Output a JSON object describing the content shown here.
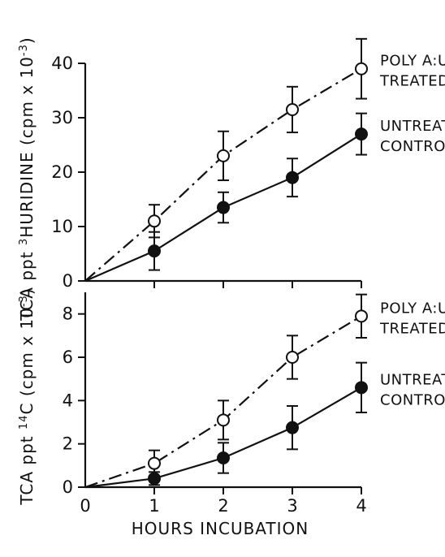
{
  "chart_data": [
    {
      "type": "line",
      "panel": "top",
      "ylabel_parts": [
        "TCA ppt ",
        "3",
        "H",
        "URIDINE (cpm x 10",
        "-3",
        ")"
      ],
      "x": [
        0,
        1,
        2,
        3,
        4
      ],
      "xlim": [
        0,
        4
      ],
      "ylim": [
        0,
        40
      ],
      "yticks": [
        0,
        10,
        20,
        30,
        40
      ],
      "series": [
        {
          "label_lines": [
            "POLY A:U",
            "TREATED"
          ],
          "marker": "open-circle",
          "line_style": "dash-dot",
          "values": [
            0,
            11,
            23,
            31.5,
            39
          ],
          "errors": [
            0,
            3,
            4.5,
            4.2,
            5.5
          ]
        },
        {
          "label_lines": [
            "UNTREATED",
            "CONTROL"
          ],
          "marker": "filled-circle",
          "line_style": "solid",
          "values": [
            0,
            5.5,
            13.5,
            19,
            27
          ],
          "errors": [
            0,
            3.5,
            2.8,
            3.5,
            3.8
          ]
        }
      ]
    },
    {
      "type": "line",
      "panel": "bottom",
      "ylabel_parts": [
        "TCA ppt ",
        "14",
        "C (cpm x 10",
        "-3",
        ")"
      ],
      "xlabel": "HOURS INCUBATION",
      "x": [
        0,
        1,
        2,
        3,
        4
      ],
      "xlim": [
        0,
        4
      ],
      "ylim": [
        0,
        9
      ],
      "xticks": [
        0,
        1,
        2,
        3,
        4
      ],
      "yticks": [
        0,
        2,
        4,
        6,
        8
      ],
      "series": [
        {
          "label_lines": [
            "POLY A:U",
            "TREATED"
          ],
          "marker": "open-circle",
          "line_style": "dash-dot",
          "values": [
            0,
            1.1,
            3.1,
            6,
            7.9
          ],
          "errors": [
            0,
            0.6,
            0.9,
            1.0,
            1.0
          ]
        },
        {
          "label_lines": [
            "UNTREATED",
            "CONTROL"
          ],
          "marker": "filled-circle",
          "line_style": "solid",
          "values": [
            0,
            0.4,
            1.35,
            2.75,
            4.6
          ],
          "errors": [
            0,
            0.3,
            0.7,
            1.0,
            1.15
          ]
        }
      ]
    }
  ]
}
